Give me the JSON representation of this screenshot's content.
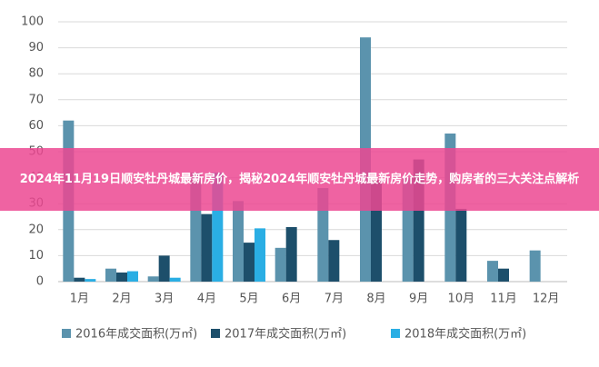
{
  "chart_data": {
    "type": "bar",
    "categories": [
      "1月",
      "2月",
      "3月",
      "4月",
      "5月",
      "6月",
      "7月",
      "8月",
      "9月",
      "10月",
      "11月",
      "12月"
    ],
    "series": [
      {
        "name": "2016年成交面积(万㎡)",
        "color": "#5b93ad",
        "values": [
          62,
          5,
          2,
          42,
          31,
          13,
          36,
          94,
          40,
          57,
          8,
          12
        ]
      },
      {
        "name": "2017年成交面积(万㎡)",
        "color": "#1d4f6b",
        "values": [
          1.5,
          3.5,
          10,
          26,
          15,
          21,
          16,
          39,
          47,
          28,
          5,
          0
        ]
      },
      {
        "name": "2018年成交面积(万㎡)",
        "color": "#2aaee4",
        "values": [
          1,
          4,
          1.5,
          42,
          20.5,
          0,
          0,
          0,
          0,
          0,
          0,
          0
        ]
      }
    ],
    "ylim": [
      0,
      100
    ],
    "yticks": [
      0,
      10,
      20,
      30,
      40,
      50,
      60,
      70,
      80,
      90,
      100
    ],
    "grid": true
  },
  "banner": {
    "title": "2024年11月19日顺安牡丹城最新房价，揭秘2024年顺安牡丹城最新房价走势，购房者的三大关注点解析"
  }
}
